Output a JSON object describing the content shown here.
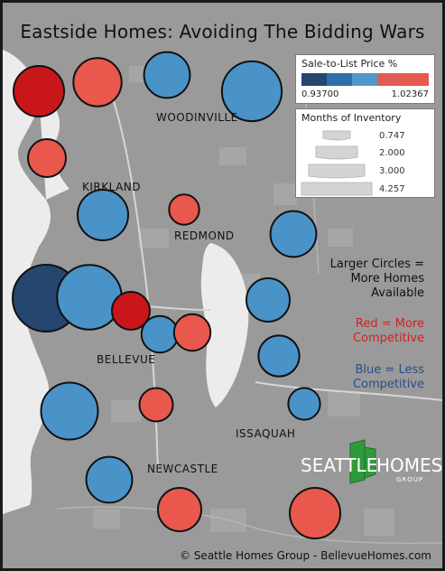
{
  "title": "Eastside Homes: Avoiding The Bidding Wars",
  "places": {
    "woodinville": "WOODINVILLE",
    "kirkland": "KIRKLAND",
    "redmond": "REDMOND",
    "bellevue": "BELLEVUE",
    "issaquah": "ISSAQUAH",
    "newcastle": "NEWCASTLE"
  },
  "legend_color": {
    "title": "Sale-to-List Price %",
    "min_label": "0.93700",
    "max_label": "1.02367",
    "colors": [
      "#24466f",
      "#2e6fa8",
      "#4f98cc",
      "#df5b53",
      "#e8584d"
    ]
  },
  "legend_size": {
    "title": "Months of Inventory",
    "items": [
      "0.747",
      "2.000",
      "3.000",
      "4.257"
    ]
  },
  "notes": {
    "size_1": "Larger Circles =",
    "size_2": "More Homes",
    "size_3": "Available",
    "red_1": "Red = More",
    "red_2": "Competitive",
    "blue_1": "Blue = Less",
    "blue_2": "Competitive"
  },
  "logo": {
    "word1": "SEATTLE",
    "word2": "HOMES",
    "sub": "GROUP"
  },
  "copyright": "© Seattle Homes Group - BellevueHomes.com",
  "colors": {
    "red": "#e8584d",
    "dark_red": "#c9161b",
    "blue": "#4a93c9",
    "dark_blue": "#24466f",
    "note_red": "#d81e1e",
    "note_blue": "#2a4e8a",
    "logo_green": "#2f9a3a",
    "land": "#9a9a9a",
    "water": "#ececec"
  },
  "chart_data": {
    "type": "proportional-symbol-map",
    "color_metric": "Sale-to-List Price %",
    "color_range": [
      0.937,
      1.02367
    ],
    "size_metric": "Months of Inventory",
    "size_range": [
      0.747,
      4.257
    ],
    "points": [
      {
        "color": 1.0237,
        "size": 2.6
      },
      {
        "color": 1.02,
        "size": 2.4
      },
      {
        "color": 0.975,
        "size": 2.2
      },
      {
        "color": 0.965,
        "size": 3.5
      },
      {
        "color": 1.02,
        "size": 1.6
      },
      {
        "color": 0.97,
        "size": 2.6
      },
      {
        "color": 1.02,
        "size": 1.1
      },
      {
        "color": 0.97,
        "size": 2.2
      },
      {
        "color": 0.937,
        "size": 4.257
      },
      {
        "color": 0.96,
        "size": 4.0
      },
      {
        "color": 1.0237,
        "size": 1.6
      },
      {
        "color": 0.975,
        "size": 1.5
      },
      {
        "color": 1.02,
        "size": 1.5
      },
      {
        "color": 0.97,
        "size": 2.0
      },
      {
        "color": 0.97,
        "size": 1.8
      },
      {
        "color": 0.965,
        "size": 3.2
      },
      {
        "color": 1.02,
        "size": 1.3
      },
      {
        "color": 0.97,
        "size": 1.2
      },
      {
        "color": 0.97,
        "size": 2.2
      },
      {
        "color": 1.02,
        "size": 2.0
      },
      {
        "color": 1.02,
        "size": 2.6
      }
    ]
  }
}
